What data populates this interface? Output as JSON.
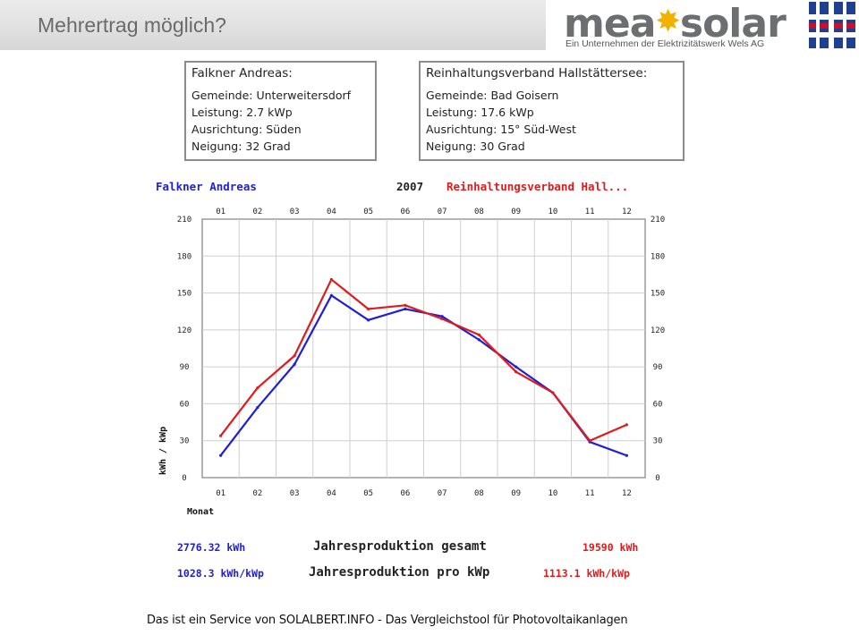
{
  "slide": {
    "title": "Mehrertrag möglich?"
  },
  "logo": {
    "brand_left": "mea",
    "brand_right": "solar",
    "tagline": "Ein Unternehmen der Elektrizitätswerk Wels AG"
  },
  "plant_a": {
    "name": "Falkner Andreas:",
    "lines": [
      "Gemeinde: Unterweitersdorf",
      "Leistung: 2.7 kWp",
      "Ausrichtung: Süden",
      "Neigung: 32 Grad"
    ]
  },
  "plant_b": {
    "name": "Reinhaltungsverband Hallstättersee:",
    "lines": [
      "Gemeinde: Bad Goisern",
      "Leistung: 17.6 kWp",
      "Ausrichtung: 15° Süd-West",
      "Neigung: 30 Grad"
    ]
  },
  "legend": {
    "left": "Falkner Andreas",
    "year": "2007",
    "right": "Reinhaltungsverband Hall..."
  },
  "chart_data": {
    "type": "line",
    "title": "2007",
    "categories": [
      "01",
      "02",
      "03",
      "04",
      "05",
      "06",
      "07",
      "08",
      "09",
      "10",
      "11",
      "12"
    ],
    "xlabel": "Monat",
    "ylabel": "kWh / kWp",
    "ylim": [
      0,
      210
    ],
    "yticks": [
      0,
      30,
      60,
      90,
      120,
      150,
      180,
      210
    ],
    "grid": true,
    "series": [
      {
        "name": "Falkner Andreas",
        "color": "#1f1fd6",
        "values": [
          18,
          57,
          92,
          148,
          128,
          137,
          131,
          112,
          90,
          69,
          29,
          18
        ]
      },
      {
        "name": "Reinhaltungsverband Hall...",
        "color": "#e01b1b",
        "values": [
          34,
          73,
          99,
          161,
          137,
          140,
          129,
          116,
          86,
          69,
          30,
          43
        ]
      }
    ]
  },
  "summary": {
    "total_label": "Jahresproduktion gesamt",
    "per_kwp_label": "Jahresproduktion pro kWp",
    "a_total": "2776.32 kWh",
    "a_per_kwp": "1028.3 kWh/kWp",
    "b_total": "19590 kWh",
    "b_per_kwp": "1113.1 kWh/kWp"
  },
  "footer": "Das ist ein Service von SOLALBERT.INFO - Das Vergleichstool für Photovoltaikanlagen"
}
